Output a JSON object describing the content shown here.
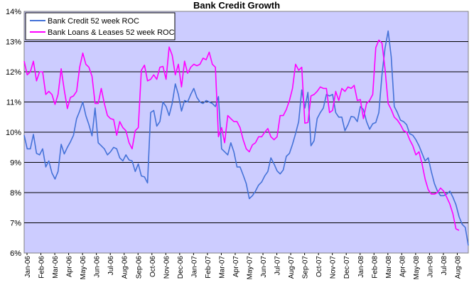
{
  "chart_data": {
    "type": "line",
    "title": "Bank Credit Growth",
    "xlabel": "",
    "ylabel": "",
    "ylim": [
      0.06,
      0.14
    ],
    "y_ticks": [
      "6%",
      "7%",
      "8%",
      "9%",
      "10%",
      "11%",
      "12%",
      "13%",
      "14%"
    ],
    "x_ticks": [
      "Jan-06",
      "Feb-06",
      "Mar-06",
      "Apr-06",
      "May-06",
      "Jun-06",
      "Jul-06",
      "Aug-06",
      "Sep-06",
      "Oct-06",
      "Nov-06",
      "Dec-06",
      "Jan-07",
      "Feb-07",
      "Mar-07",
      "Apr-07",
      "May-07",
      "Jun-07",
      "Jul-07",
      "Aug-07",
      "Sep-07",
      "Oct-07",
      "Nov-07",
      "Dec-07",
      "Jan-08",
      "Feb-08",
      "Mar-08",
      "Apr-08",
      "May-08",
      "Jun-08",
      "Jul-08",
      "Aug-08"
    ],
    "grid": "horizontal",
    "plot_background": "#ccccff",
    "legend_position": "top-left",
    "series": [
      {
        "name": "Bank Credit 52 week ROC",
        "color": "#4472d8",
        "x_start": "2006-01-06",
        "values": [
          0.099,
          0.0945,
          0.0945,
          0.0993,
          0.093,
          0.0925,
          0.0945,
          0.0885,
          0.0905,
          0.0865,
          0.0845,
          0.087,
          0.096,
          0.0928,
          0.095,
          0.0968,
          0.099,
          0.1045,
          0.107,
          0.11,
          0.1055,
          0.1025,
          0.0988,
          0.108,
          0.0965,
          0.0955,
          0.0945,
          0.0925,
          0.0935,
          0.095,
          0.0945,
          0.0915,
          0.0905,
          0.0925,
          0.0908,
          0.0905,
          0.087,
          0.0895,
          0.0855,
          0.0852,
          0.0832,
          0.1065,
          0.1072,
          0.102,
          0.1035,
          0.11,
          0.1085,
          0.1055,
          0.1095,
          0.116,
          0.1125,
          0.107,
          0.1105,
          0.11,
          0.1125,
          0.1145,
          0.1115,
          0.11,
          0.1095,
          0.1105,
          0.11,
          0.1095,
          0.1085,
          0.1118,
          0.0945,
          0.0935,
          0.0925,
          0.0965,
          0.0935,
          0.0885,
          0.0885,
          0.0858,
          0.083,
          0.078,
          0.079,
          0.0805,
          0.0825,
          0.0835,
          0.0855,
          0.087,
          0.0915,
          0.0895,
          0.0872,
          0.0862,
          0.0875,
          0.092,
          0.093,
          0.096,
          0.0995,
          0.1035,
          0.114,
          0.108,
          0.1132,
          0.0955,
          0.0972,
          0.1045,
          0.1065,
          0.108,
          0.1125,
          0.112,
          0.1125,
          0.1065,
          0.105,
          0.105,
          0.1005,
          0.1025,
          0.1052,
          0.105,
          0.1035,
          0.1085,
          0.1075,
          0.1035,
          0.101,
          0.1028,
          0.1032,
          0.1065,
          0.119,
          0.1278,
          0.1335,
          0.125,
          0.1085,
          0.1065,
          0.104,
          0.1035,
          0.1025,
          0.0995,
          0.099,
          0.0975,
          0.0955,
          0.093,
          0.0905,
          0.0915,
          0.087,
          0.083,
          0.0805,
          0.079,
          0.079,
          0.0795,
          0.0805,
          0.0785,
          0.076,
          0.072,
          0.0695,
          0.0685,
          0.0625
        ]
      },
      {
        "name": "Bank Loans & Leases 52 week ROC",
        "color": "#ff00ff",
        "x_start": "2006-01-06",
        "values": [
          0.1235,
          0.119,
          0.12,
          0.1235,
          0.117,
          0.12,
          0.12,
          0.1125,
          0.1135,
          0.1125,
          0.1092,
          0.1125,
          0.121,
          0.114,
          0.1078,
          0.1115,
          0.112,
          0.1135,
          0.1215,
          0.1262,
          0.1225,
          0.1215,
          0.1185,
          0.1095,
          0.1095,
          0.1145,
          0.1095,
          0.1055,
          0.1045,
          0.1042,
          0.099,
          0.1035,
          0.1015,
          0.1005,
          0.0965,
          0.0945,
          0.1005,
          0.1015,
          0.1205,
          0.1222,
          0.117,
          0.1175,
          0.119,
          0.1175,
          0.1215,
          0.1218,
          0.1175,
          0.1282,
          0.1255,
          0.119,
          0.1225,
          0.115,
          0.1235,
          0.1195,
          0.1215,
          0.1225,
          0.122,
          0.1225,
          0.1245,
          0.124,
          0.1265,
          0.1225,
          0.1215,
          0.0985,
          0.1015,
          0.0965,
          0.1055,
          0.1045,
          0.1035,
          0.1035,
          0.1015,
          0.0975,
          0.0945,
          0.0935,
          0.0958,
          0.0965,
          0.0985,
          0.0985,
          0.1,
          0.1012,
          0.0985,
          0.0975,
          0.0985,
          0.1055,
          0.1055,
          0.1075,
          0.1105,
          0.1145,
          0.1225,
          0.1205,
          0.1215,
          0.103,
          0.1032,
          0.112,
          0.1125,
          0.1135,
          0.115,
          0.1145,
          0.1145,
          0.1065,
          0.1072,
          0.1135,
          0.1105,
          0.1145,
          0.1135,
          0.115,
          0.1145,
          0.1155,
          0.1105,
          0.1108,
          0.1045,
          0.1095,
          0.1105,
          0.1125,
          0.128,
          0.1305,
          0.1295,
          0.121,
          0.1095,
          0.1075,
          0.105,
          0.104,
          0.1025,
          0.1005,
          0.1,
          0.0975,
          0.0955,
          0.0925,
          0.0935,
          0.0895,
          0.0845,
          0.081,
          0.0795,
          0.0795,
          0.08,
          0.0815,
          0.0805,
          0.0785,
          0.0762,
          0.073,
          0.068,
          0.0675
        ]
      }
    ]
  }
}
